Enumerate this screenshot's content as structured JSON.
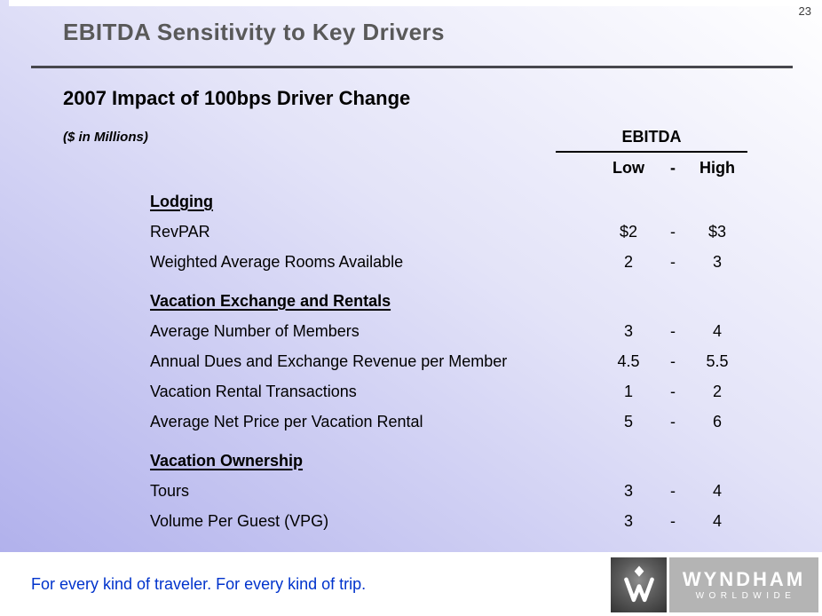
{
  "page_number": "23",
  "slide": {
    "title": "EBITDA Sensitivity to Key Drivers",
    "subtitle": "2007 Impact of 100bps Driver Change",
    "units_note": "($ in Millions)",
    "table": {
      "group_header": "EBITDA",
      "col_low": "Low",
      "col_separator": "-",
      "col_high": "High",
      "sections": [
        {
          "header": "Lodging",
          "rows": [
            {
              "label": "RevPAR",
              "low": "$2",
              "dash": "-",
              "high": "$3"
            },
            {
              "label": "Weighted Average Rooms Available",
              "low": "2",
              "dash": "-",
              "high": "3"
            }
          ]
        },
        {
          "header": "Vacation Exchange and Rentals",
          "rows": [
            {
              "label": "Average Number of Members",
              "low": "3",
              "dash": "-",
              "high": "4"
            },
            {
              "label": "Annual Dues and Exchange Revenue per Member",
              "low": "4.5",
              "dash": "-",
              "high": "5.5"
            },
            {
              "label": "Vacation Rental Transactions",
              "low": "1",
              "dash": "-",
              "high": "2"
            },
            {
              "label": "Average Net Price per Vacation Rental",
              "low": "5",
              "dash": "-",
              "high": "6"
            }
          ]
        },
        {
          "header": "Vacation Ownership",
          "rows": [
            {
              "label": "Tours",
              "low": "3",
              "dash": "-",
              "high": "4"
            },
            {
              "label": "Volume Per Guest (VPG)",
              "low": "3",
              "dash": "-",
              "high": "4"
            }
          ]
        }
      ]
    }
  },
  "footer": {
    "tagline": "For every kind of traveler. For every kind of trip.",
    "logo_brand": "WYNDHAM",
    "logo_sub": "WORLDWIDE"
  },
  "colors": {
    "title_gray": "#595959",
    "rule_gray": "#47474d",
    "tagline_blue": "#0033cc",
    "gradient_top_right": "#ffffff",
    "gradient_bottom_left": "#b1b1ec",
    "logo_panel_gray": "#b4b4b4"
  }
}
